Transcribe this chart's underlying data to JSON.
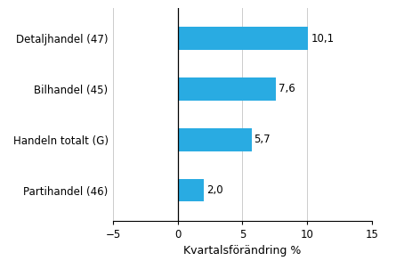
{
  "categories": [
    "Partihandel (46)",
    "Handeln totalt (G)",
    "Bilhandel (45)",
    "Detaljhandel (47)"
  ],
  "values": [
    2.0,
    5.7,
    7.6,
    10.1
  ],
  "bar_color": "#29abe2",
  "xlabel": "Kvartalsförändring %",
  "xlim": [
    -5,
    15
  ],
  "xticks": [
    -5,
    0,
    5,
    10,
    15
  ],
  "value_labels": [
    "2,0",
    "5,7",
    "7,6",
    "10,1"
  ],
  "bar_height": 0.45,
  "background_color": "#ffffff",
  "grid_color": "#cccccc",
  "label_fontsize": 8.5,
  "xlabel_fontsize": 9,
  "value_fontsize": 8.5
}
